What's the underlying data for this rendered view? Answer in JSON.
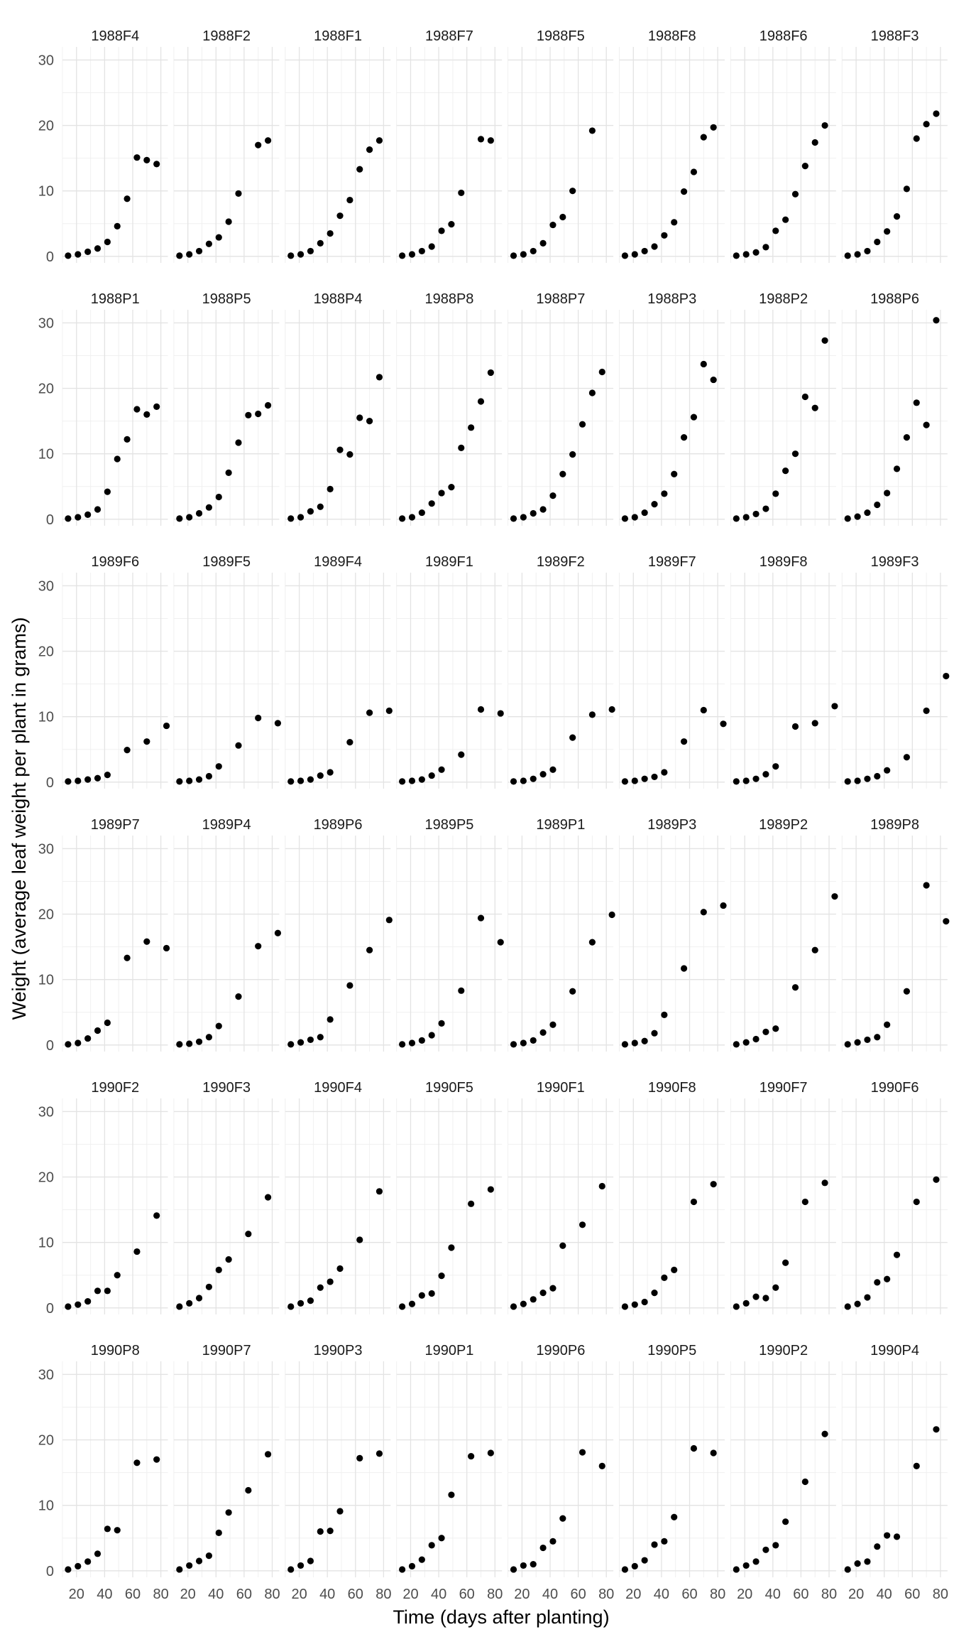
{
  "chart_data": {
    "type": "scatter",
    "layout": "facet grid, 6 rows x 8 columns",
    "xlabel": "Time (days after planting)",
    "ylabel": "Weight (average leaf weight per plant in grams)",
    "xlim": [
      10,
      85
    ],
    "ylim": [
      -1,
      32
    ],
    "x_ticks": [
      20,
      40,
      60,
      80
    ],
    "y_ticks": [
      0,
      10,
      20,
      30
    ],
    "grid": true,
    "point_color": "#000000",
    "panels": [
      {
        "name": "1988F4",
        "x": [
          14,
          21,
          28,
          35,
          42,
          49,
          56,
          63,
          70,
          77
        ],
        "y": [
          0.1,
          0.3,
          0.7,
          1.2,
          2.2,
          4.6,
          8.8,
          15.1,
          14.7,
          14.1
        ]
      },
      {
        "name": "1988F2",
        "x": [
          14,
          21,
          28,
          35,
          42,
          49,
          56,
          70,
          77
        ],
        "y": [
          0.1,
          0.3,
          0.8,
          1.9,
          2.9,
          5.3,
          9.6,
          17.0,
          17.7
        ]
      },
      {
        "name": "1988F1",
        "x": [
          14,
          21,
          28,
          35,
          42,
          49,
          56,
          63,
          70,
          77
        ],
        "y": [
          0.1,
          0.3,
          0.8,
          2.0,
          3.5,
          6.2,
          8.6,
          13.3,
          16.3,
          17.7
        ]
      },
      {
        "name": "1988F7",
        "x": [
          14,
          21,
          28,
          35,
          42,
          49,
          56,
          70,
          77
        ],
        "y": [
          0.1,
          0.3,
          0.8,
          1.5,
          3.9,
          4.9,
          9.7,
          17.9,
          17.7
        ]
      },
      {
        "name": "1988F5",
        "x": [
          14,
          21,
          28,
          35,
          42,
          49,
          56,
          70
        ],
        "y": [
          0.1,
          0.3,
          0.8,
          2.0,
          4.8,
          6.0,
          10.0,
          19.2
        ]
      },
      {
        "name": "1988F8",
        "x": [
          14,
          21,
          28,
          35,
          42,
          49,
          56,
          63,
          70,
          77
        ],
        "y": [
          0.1,
          0.3,
          0.8,
          1.5,
          3.2,
          5.2,
          9.9,
          12.9,
          18.2,
          19.7
        ]
      },
      {
        "name": "1988F6",
        "x": [
          14,
          21,
          28,
          35,
          42,
          49,
          56,
          63,
          70,
          77
        ],
        "y": [
          0.1,
          0.3,
          0.6,
          1.4,
          3.9,
          5.6,
          9.5,
          13.8,
          17.4,
          20.0
        ]
      },
      {
        "name": "1988F3",
        "x": [
          14,
          21,
          28,
          35,
          42,
          49,
          56,
          63,
          70,
          77
        ],
        "y": [
          0.1,
          0.3,
          0.8,
          2.2,
          3.8,
          6.1,
          10.3,
          18.0,
          20.2,
          21.8
        ]
      },
      {
        "name": "1988P1",
        "x": [
          14,
          21,
          28,
          35,
          42,
          49,
          56,
          63,
          70,
          77
        ],
        "y": [
          0.1,
          0.3,
          0.7,
          1.5,
          4.2,
          9.2,
          12.2,
          16.8,
          16.0,
          17.2
        ]
      },
      {
        "name": "1988P5",
        "x": [
          14,
          21,
          28,
          35,
          42,
          49,
          56,
          63,
          70,
          77
        ],
        "y": [
          0.1,
          0.3,
          0.9,
          1.8,
          3.4,
          7.1,
          11.7,
          15.9,
          16.1,
          17.4
        ]
      },
      {
        "name": "1988P4",
        "x": [
          14,
          21,
          28,
          35,
          42,
          49,
          56,
          63,
          70,
          77
        ],
        "y": [
          0.1,
          0.3,
          1.2,
          1.9,
          4.6,
          10.6,
          9.9,
          15.5,
          15.0,
          21.7
        ]
      },
      {
        "name": "1988P8",
        "x": [
          14,
          21,
          28,
          35,
          42,
          49,
          56,
          63,
          70,
          77
        ],
        "y": [
          0.1,
          0.3,
          1.0,
          2.4,
          4.0,
          4.9,
          10.9,
          14.0,
          18.0,
          22.4
        ]
      },
      {
        "name": "1988P7",
        "x": [
          14,
          21,
          28,
          35,
          42,
          49,
          56,
          63,
          70,
          77
        ],
        "y": [
          0.1,
          0.3,
          0.9,
          1.5,
          3.6,
          6.9,
          9.9,
          14.5,
          19.3,
          22.5
        ]
      },
      {
        "name": "1988P3",
        "x": [
          14,
          21,
          28,
          35,
          42,
          49,
          56,
          63,
          70,
          77
        ],
        "y": [
          0.1,
          0.3,
          1.0,
          2.3,
          3.9,
          6.9,
          12.5,
          15.6,
          23.7,
          21.3
        ]
      },
      {
        "name": "1988P2",
        "x": [
          14,
          21,
          28,
          35,
          42,
          49,
          56,
          63,
          70,
          77
        ],
        "y": [
          0.1,
          0.3,
          0.8,
          1.6,
          3.9,
          7.4,
          10.0,
          18.7,
          17.0,
          27.3
        ]
      },
      {
        "name": "1988P6",
        "x": [
          14,
          21,
          28,
          35,
          42,
          49,
          56,
          63,
          70,
          77
        ],
        "y": [
          0.1,
          0.4,
          1.0,
          2.2,
          4.0,
          7.7,
          12.5,
          17.8,
          14.4,
          30.4
        ]
      },
      {
        "name": "1989F6",
        "x": [
          14,
          21,
          28,
          35,
          42,
          56,
          70,
          84
        ],
        "y": [
          0.1,
          0.2,
          0.4,
          0.6,
          1.1,
          4.9,
          6.2,
          8.6
        ]
      },
      {
        "name": "1989F5",
        "x": [
          14,
          21,
          28,
          35,
          42,
          56,
          70,
          84
        ],
        "y": [
          0.1,
          0.2,
          0.4,
          0.9,
          2.4,
          5.6,
          9.8,
          9.0
        ]
      },
      {
        "name": "1989F4",
        "x": [
          14,
          21,
          28,
          35,
          42,
          56,
          70,
          84
        ],
        "y": [
          0.1,
          0.2,
          0.4,
          1.0,
          1.5,
          6.1,
          10.6,
          10.9
        ]
      },
      {
        "name": "1989F1",
        "x": [
          14,
          21,
          28,
          35,
          42,
          56,
          70,
          84
        ],
        "y": [
          0.1,
          0.2,
          0.4,
          1.0,
          1.9,
          4.2,
          11.1,
          10.5
        ]
      },
      {
        "name": "1989F2",
        "x": [
          14,
          21,
          28,
          35,
          42,
          56,
          70,
          84
        ],
        "y": [
          0.1,
          0.2,
          0.5,
          1.2,
          1.9,
          6.8,
          10.3,
          11.1
        ]
      },
      {
        "name": "1989F7",
        "x": [
          14,
          21,
          28,
          35,
          42,
          56,
          70,
          84
        ],
        "y": [
          0.1,
          0.2,
          0.5,
          0.8,
          1.5,
          6.2,
          11.0,
          8.9
        ]
      },
      {
        "name": "1989F8",
        "x": [
          14,
          21,
          28,
          35,
          42,
          56,
          70,
          84
        ],
        "y": [
          0.1,
          0.2,
          0.5,
          1.2,
          2.4,
          8.5,
          9.0,
          11.6
        ]
      },
      {
        "name": "1989F3",
        "x": [
          14,
          21,
          28,
          35,
          42,
          56,
          70,
          84
        ],
        "y": [
          0.1,
          0.2,
          0.5,
          0.9,
          1.8,
          3.8,
          10.9,
          16.2
        ]
      },
      {
        "name": "1989P7",
        "x": [
          14,
          21,
          28,
          35,
          42,
          56,
          70,
          84
        ],
        "y": [
          0.1,
          0.3,
          1.0,
          2.2,
          3.4,
          13.3,
          15.8,
          14.8
        ]
      },
      {
        "name": "1989P4",
        "x": [
          14,
          21,
          28,
          35,
          42,
          56,
          70,
          84
        ],
        "y": [
          0.1,
          0.2,
          0.5,
          1.2,
          2.9,
          7.4,
          15.1,
          17.1
        ]
      },
      {
        "name": "1989P6",
        "x": [
          14,
          21,
          28,
          35,
          42,
          56,
          70,
          84
        ],
        "y": [
          0.1,
          0.4,
          0.8,
          1.2,
          3.9,
          9.1,
          14.5,
          19.1
        ]
      },
      {
        "name": "1989P5",
        "x": [
          14,
          21,
          28,
          35,
          42,
          56,
          70,
          84
        ],
        "y": [
          0.1,
          0.3,
          0.7,
          1.5,
          3.3,
          8.3,
          19.4,
          15.7
        ]
      },
      {
        "name": "1989P1",
        "x": [
          14,
          21,
          28,
          35,
          42,
          56,
          70,
          84
        ],
        "y": [
          0.1,
          0.3,
          0.7,
          1.9,
          3.1,
          8.2,
          15.7,
          19.9
        ]
      },
      {
        "name": "1989P3",
        "x": [
          14,
          21,
          28,
          35,
          42,
          56,
          70,
          84
        ],
        "y": [
          0.1,
          0.3,
          0.6,
          1.8,
          4.6,
          11.7,
          20.3,
          21.3
        ]
      },
      {
        "name": "1989P2",
        "x": [
          14,
          21,
          28,
          35,
          42,
          56,
          70,
          84
        ],
        "y": [
          0.1,
          0.4,
          0.9,
          2.0,
          2.5,
          8.8,
          14.5,
          22.7
        ]
      },
      {
        "name": "1989P8",
        "x": [
          14,
          21,
          28,
          35,
          42,
          56,
          70,
          84
        ],
        "y": [
          0.1,
          0.4,
          0.8,
          1.2,
          3.1,
          8.2,
          24.4,
          18.9
        ]
      },
      {
        "name": "1990F2",
        "x": [
          14,
          21,
          28,
          35,
          42,
          49,
          63,
          77
        ],
        "y": [
          0.2,
          0.5,
          1.0,
          2.6,
          2.6,
          5.0,
          8.6,
          14.1
        ]
      },
      {
        "name": "1990F3",
        "x": [
          14,
          21,
          28,
          35,
          42,
          49,
          63,
          77
        ],
        "y": [
          0.2,
          0.7,
          1.5,
          3.2,
          5.8,
          7.4,
          11.3,
          16.9
        ]
      },
      {
        "name": "1990F4",
        "x": [
          14,
          21,
          28,
          35,
          42,
          49,
          63,
          77
        ],
        "y": [
          0.2,
          0.7,
          1.1,
          3.1,
          4.0,
          6.0,
          10.4,
          17.8
        ]
      },
      {
        "name": "1990F5",
        "x": [
          14,
          21,
          28,
          35,
          42,
          49,
          63,
          77
        ],
        "y": [
          0.2,
          0.6,
          1.9,
          2.2,
          4.9,
          9.2,
          15.9,
          18.1
        ]
      },
      {
        "name": "1990F1",
        "x": [
          14,
          21,
          28,
          35,
          42,
          49,
          63,
          77
        ],
        "y": [
          0.2,
          0.6,
          1.3,
          2.3,
          3.0,
          9.5,
          12.7,
          18.6
        ]
      },
      {
        "name": "1990F8",
        "x": [
          14,
          21,
          28,
          35,
          42,
          49,
          63,
          77
        ],
        "y": [
          0.2,
          0.5,
          0.9,
          2.3,
          4.6,
          5.8,
          16.2,
          18.9
        ]
      },
      {
        "name": "1990F7",
        "x": [
          14,
          21,
          28,
          35,
          42,
          49,
          63,
          77
        ],
        "y": [
          0.2,
          0.7,
          1.7,
          1.5,
          3.1,
          6.9,
          16.2,
          19.1
        ]
      },
      {
        "name": "1990F6",
        "x": [
          14,
          21,
          28,
          35,
          42,
          49,
          63,
          77
        ],
        "y": [
          0.2,
          0.6,
          1.6,
          3.9,
          4.4,
          8.1,
          16.2,
          19.6
        ]
      },
      {
        "name": "1990P8",
        "x": [
          14,
          21,
          28,
          35,
          42,
          49,
          63,
          77
        ],
        "y": [
          0.2,
          0.7,
          1.4,
          2.6,
          6.4,
          6.2,
          16.5,
          17.0
        ]
      },
      {
        "name": "1990P7",
        "x": [
          14,
          21,
          28,
          35,
          42,
          49,
          63,
          77
        ],
        "y": [
          0.2,
          0.8,
          1.5,
          2.3,
          5.8,
          8.9,
          12.3,
          17.8
        ]
      },
      {
        "name": "1990P3",
        "x": [
          14,
          21,
          28,
          35,
          42,
          49,
          63,
          77
        ],
        "y": [
          0.2,
          0.8,
          1.5,
          6.0,
          6.1,
          9.1,
          17.2,
          17.9
        ]
      },
      {
        "name": "1990P1",
        "x": [
          14,
          21,
          28,
          35,
          42,
          49,
          63,
          77
        ],
        "y": [
          0.2,
          0.7,
          1.7,
          3.9,
          5.0,
          11.6,
          17.5,
          18.0
        ]
      },
      {
        "name": "1990P6",
        "x": [
          14,
          21,
          28,
          35,
          42,
          49,
          63,
          77
        ],
        "y": [
          0.2,
          0.8,
          1.0,
          3.5,
          4.5,
          8.0,
          18.1,
          16.0
        ]
      },
      {
        "name": "1990P5",
        "x": [
          14,
          21,
          28,
          35,
          42,
          49,
          63,
          77
        ],
        "y": [
          0.2,
          0.7,
          1.6,
          4.0,
          4.5,
          8.2,
          18.7,
          18.0
        ]
      },
      {
        "name": "1990P2",
        "x": [
          14,
          21,
          28,
          35,
          42,
          49,
          63,
          77
        ],
        "y": [
          0.2,
          0.8,
          1.4,
          3.2,
          3.9,
          7.5,
          13.6,
          20.9
        ]
      },
      {
        "name": "1990P4",
        "x": [
          14,
          21,
          28,
          35,
          42,
          49,
          63,
          77
        ],
        "y": [
          0.2,
          1.1,
          1.4,
          3.7,
          5.4,
          5.2,
          16.0,
          21.6
        ]
      }
    ]
  }
}
